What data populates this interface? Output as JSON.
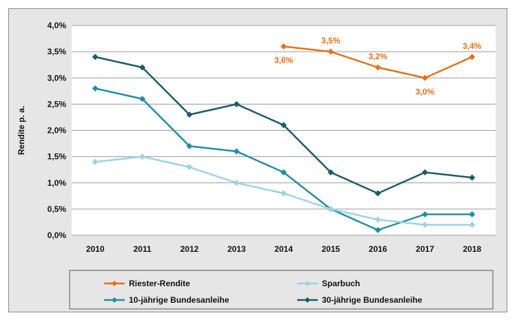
{
  "chart_data": {
    "type": "line",
    "x": [
      "2010",
      "2011",
      "2012",
      "2013",
      "2014",
      "2015",
      "2016",
      "2017",
      "2018"
    ],
    "ylabel": "Rendite p. a.",
    "ylim": [
      0,
      4.0
    ],
    "yticks": [
      "0,0%",
      "0,5%",
      "1,0%",
      "1,5%",
      "2,0%",
      "2,5%",
      "3,0%",
      "3,5%",
      "4,0%"
    ],
    "grid": true,
    "legend_position": "bottom",
    "series": [
      {
        "name": "Riester-Rendite",
        "color": "#e8701a",
        "values": [
          null,
          null,
          null,
          null,
          3.6,
          3.5,
          3.2,
          3.0,
          3.4
        ],
        "data_labels": [
          null,
          null,
          null,
          null,
          "3,6%",
          "3,5%",
          "3,2%",
          "3,0%",
          "3,4%"
        ]
      },
      {
        "name": "Sparbuch",
        "color": "#9ad3e6",
        "values": [
          1.4,
          1.5,
          1.3,
          1.0,
          0.8,
          0.5,
          0.3,
          0.2,
          0.2
        ]
      },
      {
        "name": "10-jährige Bundesanleihe",
        "color": "#1e8fa6",
        "values": [
          2.8,
          2.6,
          1.7,
          1.6,
          1.2,
          0.5,
          0.1,
          0.4,
          0.4
        ]
      },
      {
        "name": "30-jährige Bundesanleihe",
        "color": "#1b5b6b",
        "values": [
          3.4,
          3.2,
          2.3,
          2.5,
          2.1,
          1.2,
          0.8,
          1.2,
          1.1
        ]
      }
    ]
  }
}
